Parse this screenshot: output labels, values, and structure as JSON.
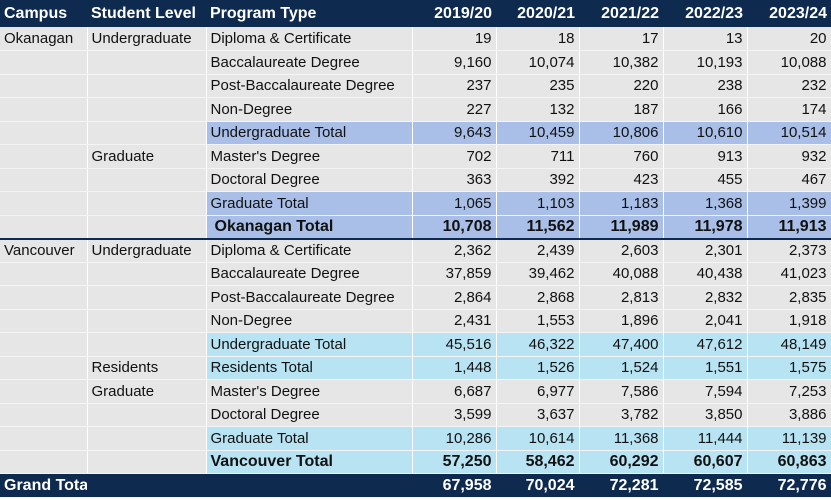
{
  "headers": [
    "Campus",
    "Student Level",
    "Program Type",
    "2019/20",
    "2020/21",
    "2021/22",
    "2022/23",
    "2023/24"
  ],
  "rows": [
    {
      "campus": "Okanagan",
      "level": "Undergraduate",
      "program": "Diploma & Certificate",
      "v": [
        "19",
        "18",
        "17",
        "13",
        "20"
      ]
    },
    {
      "campus": "",
      "level": "",
      "program": "Baccalaureate Degree",
      "v": [
        "9,160",
        "10,074",
        "10,382",
        "10,193",
        "10,088"
      ]
    },
    {
      "campus": "",
      "level": "",
      "program": "Post-Baccalaureate Degree",
      "v": [
        "237",
        "235",
        "220",
        "238",
        "232"
      ]
    },
    {
      "campus": "",
      "level": "",
      "program": "Non-Degree",
      "v": [
        "227",
        "132",
        "187",
        "166",
        "174"
      ]
    },
    {
      "campus": "",
      "level": "",
      "program": "Undergraduate Total",
      "v": [
        "9,643",
        "10,459",
        "10,806",
        "10,610",
        "10,514"
      ]
    },
    {
      "campus": "",
      "level": "Graduate",
      "program": "Master's Degree",
      "v": [
        "702",
        "711",
        "760",
        "913",
        "932"
      ]
    },
    {
      "campus": "",
      "level": "",
      "program": "Doctoral Degree",
      "v": [
        "363",
        "392",
        "423",
        "455",
        "467"
      ]
    },
    {
      "campus": "",
      "level": "",
      "program": "Graduate Total",
      "v": [
        "1,065",
        "1,103",
        "1,183",
        "1,368",
        "1,399"
      ]
    },
    {
      "campus": "",
      "level": "",
      "program": "Okanagan Total",
      "v": [
        "10,708",
        "11,562",
        "11,989",
        "11,978",
        "11,913"
      ]
    },
    {
      "campus": "Vancouver",
      "level": "Undergraduate",
      "program": "Diploma & Certificate",
      "v": [
        "2,362",
        "2,439",
        "2,603",
        "2,301",
        "2,373"
      ]
    },
    {
      "campus": "",
      "level": "",
      "program": "Baccalaureate Degree",
      "v": [
        "37,859",
        "39,462",
        "40,088",
        "40,438",
        "41,023"
      ]
    },
    {
      "campus": "",
      "level": "",
      "program": "Post-Baccalaureate Degree",
      "v": [
        "2,864",
        "2,868",
        "2,813",
        "2,832",
        "2,835"
      ]
    },
    {
      "campus": "",
      "level": "",
      "program": "Non-Degree",
      "v": [
        "2,431",
        "1,553",
        "1,896",
        "2,041",
        "1,918"
      ]
    },
    {
      "campus": "",
      "level": "",
      "program": "Undergraduate Total",
      "v": [
        "45,516",
        "46,322",
        "47,400",
        "47,612",
        "48,149"
      ]
    },
    {
      "campus": "",
      "level": "Residents",
      "program": "Residents Total",
      "v": [
        "1,448",
        "1,526",
        "1,524",
        "1,551",
        "1,575"
      ]
    },
    {
      "campus": "",
      "level": "Graduate",
      "program": "Master's Degree",
      "v": [
        "6,687",
        "6,977",
        "7,586",
        "7,594",
        "7,253"
      ]
    },
    {
      "campus": "",
      "level": "",
      "program": "Doctoral Degree",
      "v": [
        "3,599",
        "3,637",
        "3,782",
        "3,850",
        "3,886"
      ]
    },
    {
      "campus": "",
      "level": "",
      "program": "Graduate Total",
      "v": [
        "10,286",
        "10,614",
        "11,368",
        "11,444",
        "11,139"
      ]
    },
    {
      "campus": "",
      "level": "",
      "program": "Vancouver Total",
      "v": [
        "57,250",
        "58,462",
        "60,292",
        "60,607",
        "60,863"
      ]
    },
    {
      "campus": "Grand Total",
      "level": "",
      "program": "",
      "v": [
        "67,958",
        "70,024",
        "72,281",
        "72,585",
        "72,776"
      ]
    }
  ]
}
